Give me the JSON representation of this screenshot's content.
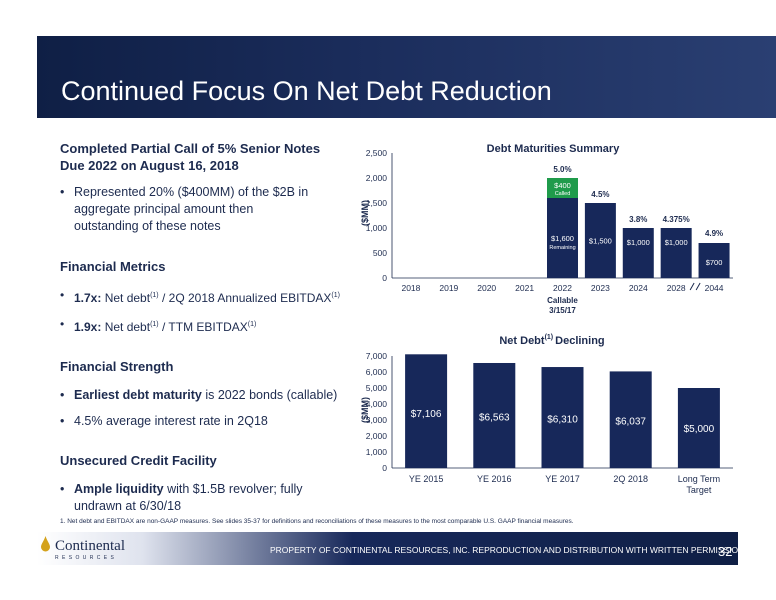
{
  "header": {
    "title": "Continued Focus On Net Debt Reduction"
  },
  "left": {
    "section1_title": "Completed Partial Call of 5% Senior Notes Due 2022 on August 16, 2018",
    "section1_bullet": "Represented 20% ($400MM) of the $2B in aggregate principal amount then outstanding of these notes",
    "section2_title": "Financial Metrics",
    "metric1_bold": "1.7x:",
    "metric1_pre": "Net debt",
    "metric1_sup1": "(1)",
    "metric1_post": "/ 2Q 2018 Annualized EBITDAX",
    "metric1_sup2": "(1)",
    "metric2_bold": "1.9x:",
    "metric2_pre": "Net debt",
    "metric2_sup1": "(1)",
    "metric2_post": "/ TTM EBITDAX",
    "metric2_sup2": "(1)",
    "section3_title": "Financial Strength",
    "strength1_bold": "Earliest debt maturity",
    "strength1_rest": "is 2022 bonds (callable)",
    "strength2": "4.5% average interest rate in 2Q18",
    "section4_title": "Unsecured Credit Facility",
    "credit_bold": "Ample liquidity",
    "credit_rest": "with $1.5B revolver; fully undrawn at 6/30/18"
  },
  "chart_data": [
    {
      "type": "bar",
      "title": "Debt Maturities Summary",
      "ylabel": "($MM)",
      "ylim": [
        0,
        2500
      ],
      "yticks": [
        "0",
        "500",
        "1,000",
        "1,500",
        "2,000",
        "2,500"
      ],
      "categories": [
        "2018",
        "2019",
        "2020",
        "2021",
        "2022",
        "2023",
        "2024",
        "2028",
        "2044"
      ],
      "series": [
        {
          "values": [
            0,
            0,
            0,
            0,
            1600,
            1500,
            1000,
            1000,
            700
          ]
        },
        {
          "values": [
            0,
            0,
            0,
            0,
            400,
            0,
            0,
            0,
            0
          ]
        }
      ],
      "bar_labels": [
        "",
        "",
        "",
        "",
        "$1,600",
        "$1,500",
        "$1,000",
        "$1,000",
        "$700"
      ],
      "bar_sublabels": [
        "",
        "",
        "",
        "",
        "Remaining",
        "",
        "",
        "",
        ""
      ],
      "called_label": "$400",
      "called_sublabel": "Called",
      "rates": [
        "",
        "",
        "",
        "",
        "5.0%",
        "4.5%",
        "3.8%",
        "4.375%",
        "4.9%"
      ],
      "callable_note": "Callable",
      "callable_date": "3/15/17"
    },
    {
      "type": "bar",
      "title": "Net Debt",
      "title_sup": "(1)",
      "title_suffix": "Declining",
      "ylabel": "($MM)",
      "ylim": [
        0,
        7000
      ],
      "yticks": [
        "0",
        "1,000",
        "2,000",
        "3,000",
        "4,000",
        "5,000",
        "6,000",
        "7,000"
      ],
      "categories": [
        "YE 2015",
        "YE 2016",
        "YE 2017",
        "2Q 2018",
        "Long Term"
      ],
      "category_line2": [
        "",
        "",
        "",
        "",
        "Target"
      ],
      "values": [
        7106,
        6563,
        6310,
        6037,
        5000
      ],
      "bar_labels": [
        "$7,106",
        "$6,563",
        "$6,310",
        "$6,037",
        "$5,000"
      ]
    }
  ],
  "colors": {
    "navy": "#17285a",
    "green": "#1f9b4b",
    "header": "#0f1f45"
  },
  "footnote": "1.   Net debt and EBITDAX are non-GAAP measures. See slides 35-37 for definitions and reconciliations of these measures to the most comparable U.S. GAAP financial measures.",
  "footer": {
    "logo": "Continental",
    "logo_sub": "R E S O U R C E S",
    "text": "PROPERTY OF CONTINENTAL RESOURCES, INC. REPRODUCTION AND DISTRIBUTION WITH WRITTEN PERMISSION ONLY",
    "page": "32"
  }
}
